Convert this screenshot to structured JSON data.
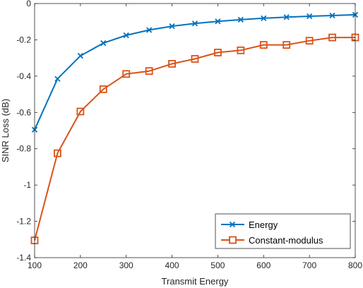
{
  "chart_data": {
    "type": "line",
    "xlabel": "Transmit Energy",
    "ylabel": "SINR Loss (dB)",
    "xlim": [
      100,
      800
    ],
    "ylim": [
      -1.4,
      0
    ],
    "xticks": [
      100,
      200,
      300,
      400,
      500,
      600,
      700,
      800
    ],
    "yticks": [
      0,
      -0.2,
      -0.4,
      -0.6,
      -0.8,
      -1,
      -1.2,
      -1.4
    ],
    "xtick_labels": [
      "100",
      "200",
      "300",
      "400",
      "500",
      "600",
      "700",
      "800"
    ],
    "ytick_labels": [
      "0",
      "-0.2",
      "-0.4",
      "-0.6",
      "-0.8",
      "-1",
      "-1.2",
      "-1.4"
    ],
    "grid": false,
    "legend_position": "bottom-right",
    "x": [
      100,
      150,
      200,
      250,
      300,
      350,
      400,
      450,
      500,
      550,
      600,
      650,
      700,
      750,
      800
    ],
    "series": [
      {
        "name": "Energy",
        "color": "#0072BD",
        "marker": "x",
        "values": [
          -0.695,
          -0.415,
          -0.288,
          -0.218,
          -0.175,
          -0.146,
          -0.125,
          -0.11,
          -0.098,
          -0.089,
          -0.081,
          -0.075,
          -0.07,
          -0.066,
          -0.062
        ]
      },
      {
        "name": "Constant-modulus",
        "color": "#D95319",
        "marker": "square",
        "values": [
          -1.305,
          -0.825,
          -0.595,
          -0.472,
          -0.388,
          -0.372,
          -0.332,
          -0.305,
          -0.27,
          -0.258,
          -0.228,
          -0.228,
          -0.205,
          -0.187,
          -0.187
        ]
      }
    ]
  }
}
